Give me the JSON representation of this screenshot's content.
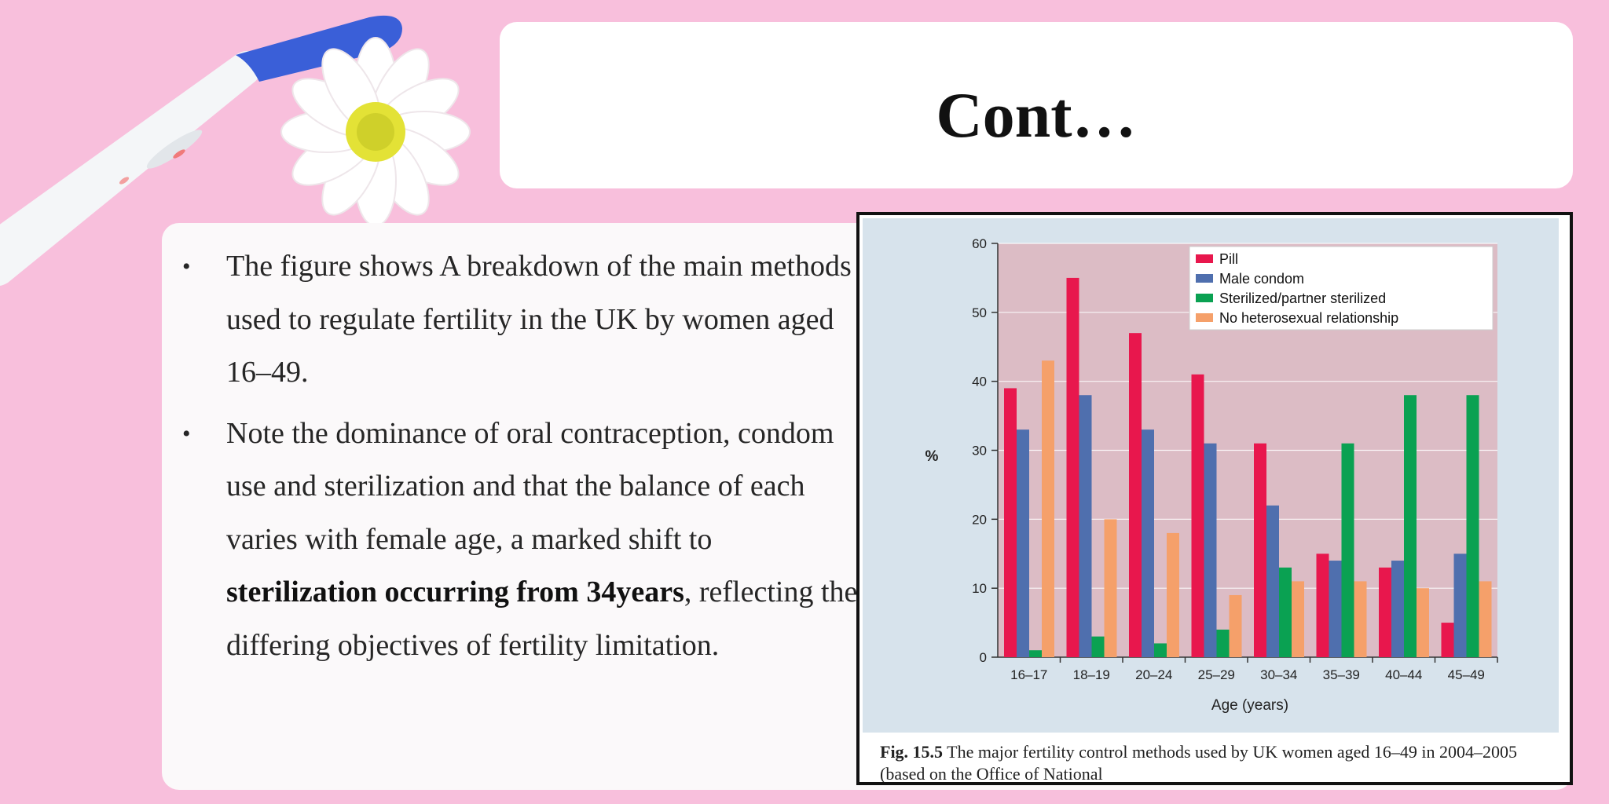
{
  "slide": {
    "title": "Cont…"
  },
  "bullets": [
    {
      "text": "The figure  shows A breakdown of  the main methods used to regulate fertility in the UK by women aged 16–49."
    },
    {
      "text_before": "Note the dominance of  oral contraception, condom use and sterilization and that the balance of  each varies with female age, a marked shift to ",
      "bold": "sterilization occurring from 34years",
      "text_after": ", reflecting the differing objectives of  fertility limitation."
    }
  ],
  "chart_data": {
    "type": "bar",
    "title": "",
    "xlabel": "Age (years)",
    "ylabel": "%",
    "ylim": [
      0,
      60
    ],
    "yticks": [
      0,
      10,
      20,
      30,
      40,
      50,
      60
    ],
    "grid": true,
    "legend_position": "top-right",
    "categories": [
      "16–17",
      "18–19",
      "20–24",
      "25–29",
      "30–34",
      "35–39",
      "40–44",
      "45–49"
    ],
    "series": [
      {
        "name": "Pill",
        "color": "#e8174d",
        "values": [
          39,
          55,
          47,
          41,
          31,
          15,
          13,
          5
        ]
      },
      {
        "name": "Male condom",
        "color": "#4f6fae",
        "values": [
          33,
          38,
          33,
          31,
          22,
          14,
          14,
          15
        ]
      },
      {
        "name": "Sterilized/partner sterilized",
        "color": "#0aa152",
        "values": [
          1,
          3,
          2,
          4,
          13,
          31,
          38,
          38
        ]
      },
      {
        "name": "No heterosexual relationship",
        "color": "#f5a06a",
        "values": [
          43,
          20,
          18,
          9,
          11,
          11,
          10,
          11
        ]
      }
    ],
    "caption_label": "Fig. 15.5",
    "caption_text": " The major fertility control methods used by UK women aged 16–49 in 2004–2005 (based on the Office of National"
  },
  "colors": {
    "background": "#f8bfdc",
    "panel": "#ffffff",
    "chart_backdrop": "#d7e3ec",
    "plot_area": "#dcbcc5"
  }
}
